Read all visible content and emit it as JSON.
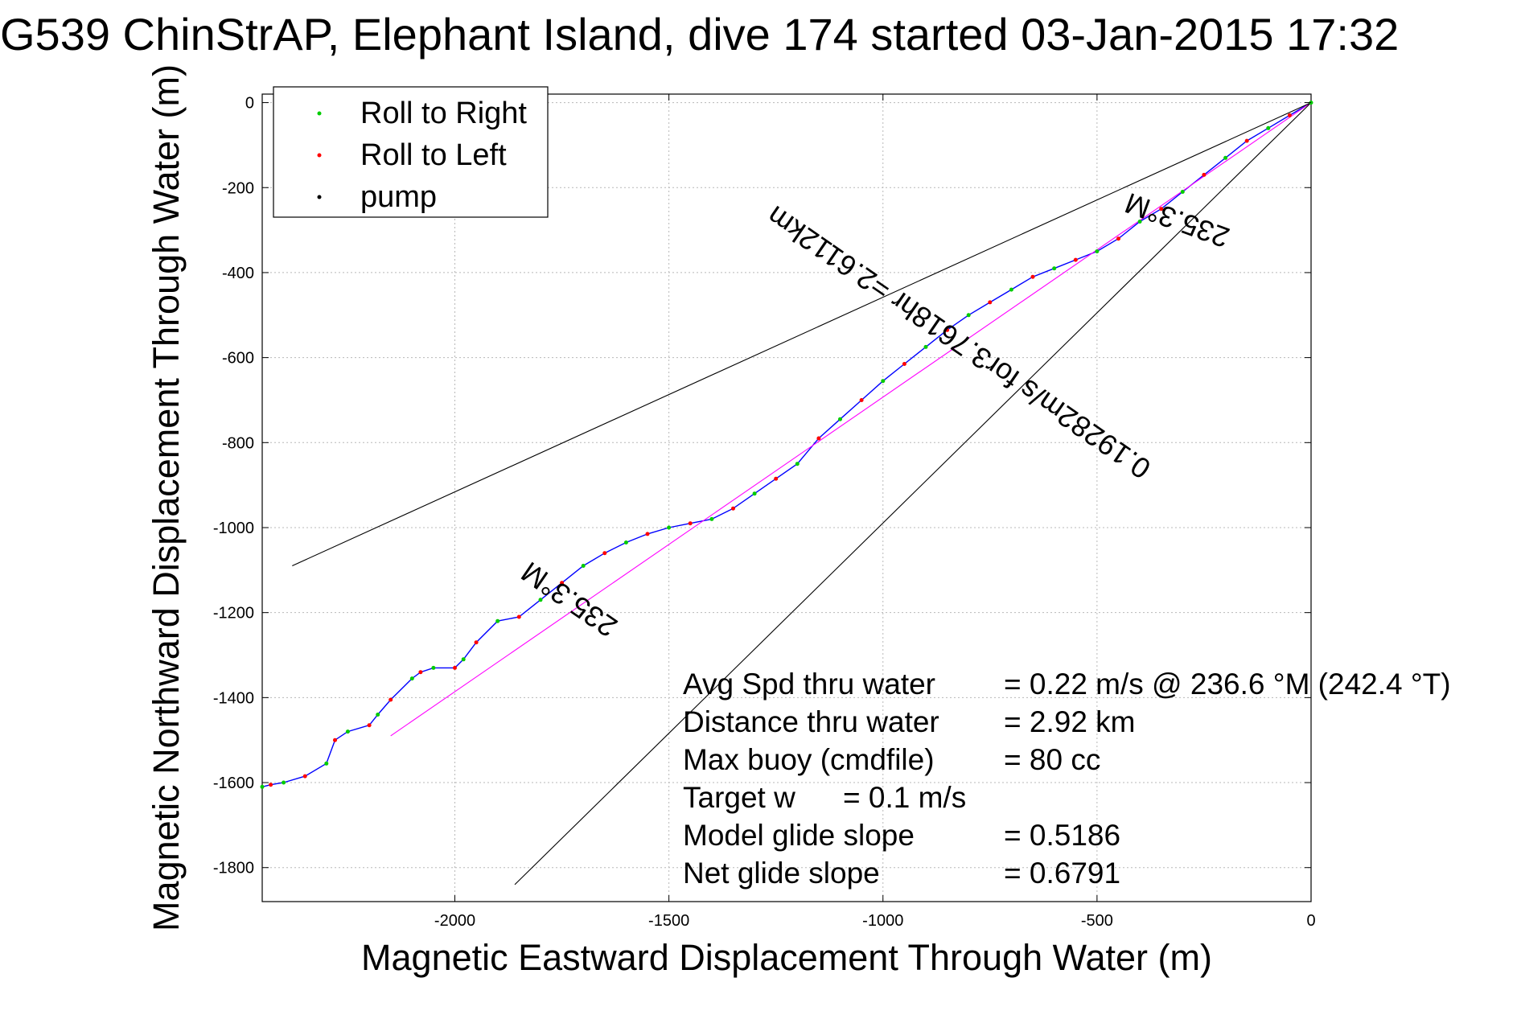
{
  "chart_data": {
    "type": "line",
    "title": "G539 ChinStrAP, Elephant Island, dive 174 started 03-Jan-2015 17:32",
    "xlabel": "Magnetic Eastward Displacement Through Water (m)",
    "ylabel": "Magnetic Northward Displacement Through Water (m)",
    "xlim": [
      -2450,
      0
    ],
    "ylim": [
      -1880,
      20
    ],
    "xticks": [
      -2000,
      -1500,
      -1000,
      -500,
      0
    ],
    "yticks": [
      0,
      -200,
      -400,
      -600,
      -800,
      -1000,
      -1200,
      -1400,
      -1600,
      -1800
    ],
    "grid": true,
    "legend_position": "top-left",
    "legend": [
      {
        "label": "Roll to Right",
        "color": "#00cc00"
      },
      {
        "label": "Roll to Left",
        "color": "#ff0000"
      },
      {
        "label": "pump",
        "color": "#000000"
      }
    ],
    "series": [
      {
        "type": "track",
        "color": "#0000ff",
        "x": [
          0,
          -50,
          -100,
          -150,
          -200,
          -250,
          -300,
          -350,
          -400,
          -450,
          -500,
          -550,
          -600,
          -650,
          -700,
          -750,
          -800,
          -850,
          -900,
          -950,
          -1000,
          -1050,
          -1100,
          -1150,
          -1200,
          -1250,
          -1300,
          -1350,
          -1400,
          -1450,
          -1500,
          -1550,
          -1600,
          -1650,
          -1700,
          -1750,
          -1800,
          -1850,
          -1900,
          -1950,
          -1980,
          -2000,
          -2050,
          -2080,
          -2100,
          -2150,
          -2180,
          -2200,
          -2250,
          -2280,
          -2300,
          -2350,
          -2400,
          -2430,
          -2450
        ],
        "y": [
          0,
          -30,
          -60,
          -90,
          -130,
          -170,
          -210,
          -250,
          -280,
          -320,
          -350,
          -370,
          -390,
          -410,
          -440,
          -470,
          -500,
          -535,
          -575,
          -615,
          -655,
          -700,
          -745,
          -790,
          -850,
          -885,
          -920,
          -955,
          -980,
          -990,
          -1000,
          -1015,
          -1035,
          -1060,
          -1090,
          -1130,
          -1170,
          -1210,
          -1220,
          -1270,
          -1310,
          -1330,
          -1330,
          -1340,
          -1355,
          -1405,
          -1440,
          -1465,
          -1480,
          -1500,
          -1555,
          -1585,
          -1600,
          -1605,
          -1610
        ]
      },
      {
        "type": "line",
        "color": "#ff00ff",
        "x": [
          0,
          -2150
        ],
        "y": [
          0,
          -1490
        ]
      },
      {
        "type": "line",
        "color": "#000000",
        "x": [
          0,
          -2380
        ],
        "y": [
          0,
          -1090
        ]
      },
      {
        "type": "line",
        "color": "#000000",
        "x": [
          0,
          -1860
        ],
        "y": [
          0,
          -1840
        ]
      }
    ],
    "annotations": [
      {
        "text": "235.3°M",
        "x": -305,
        "y": -255,
        "angle": 200
      },
      {
        "text": "0.19282m/s for3.7618hr =2.6112km",
        "x": -810,
        "y": -545,
        "angle": 214.5
      },
      {
        "text": "235.3°M",
        "x": -1720,
        "y": -1150,
        "angle": 214.5
      }
    ],
    "stats": [
      {
        "label": "Avg Spd thru water",
        "value": "=  0.22 m/s @ 236.6 °M (242.4 °T)"
      },
      {
        "label": "Distance thru water",
        "value": "=  2.92 km"
      },
      {
        "label": "Max buoy (cmdfile)",
        "value": "= 80 cc"
      },
      {
        "label": "Target w",
        "value": "= 0.1 m/s"
      },
      {
        "label": "Model glide slope",
        "value": "= 0.5186"
      },
      {
        "label": "Net glide slope",
        "value": "= 0.6791"
      }
    ]
  }
}
